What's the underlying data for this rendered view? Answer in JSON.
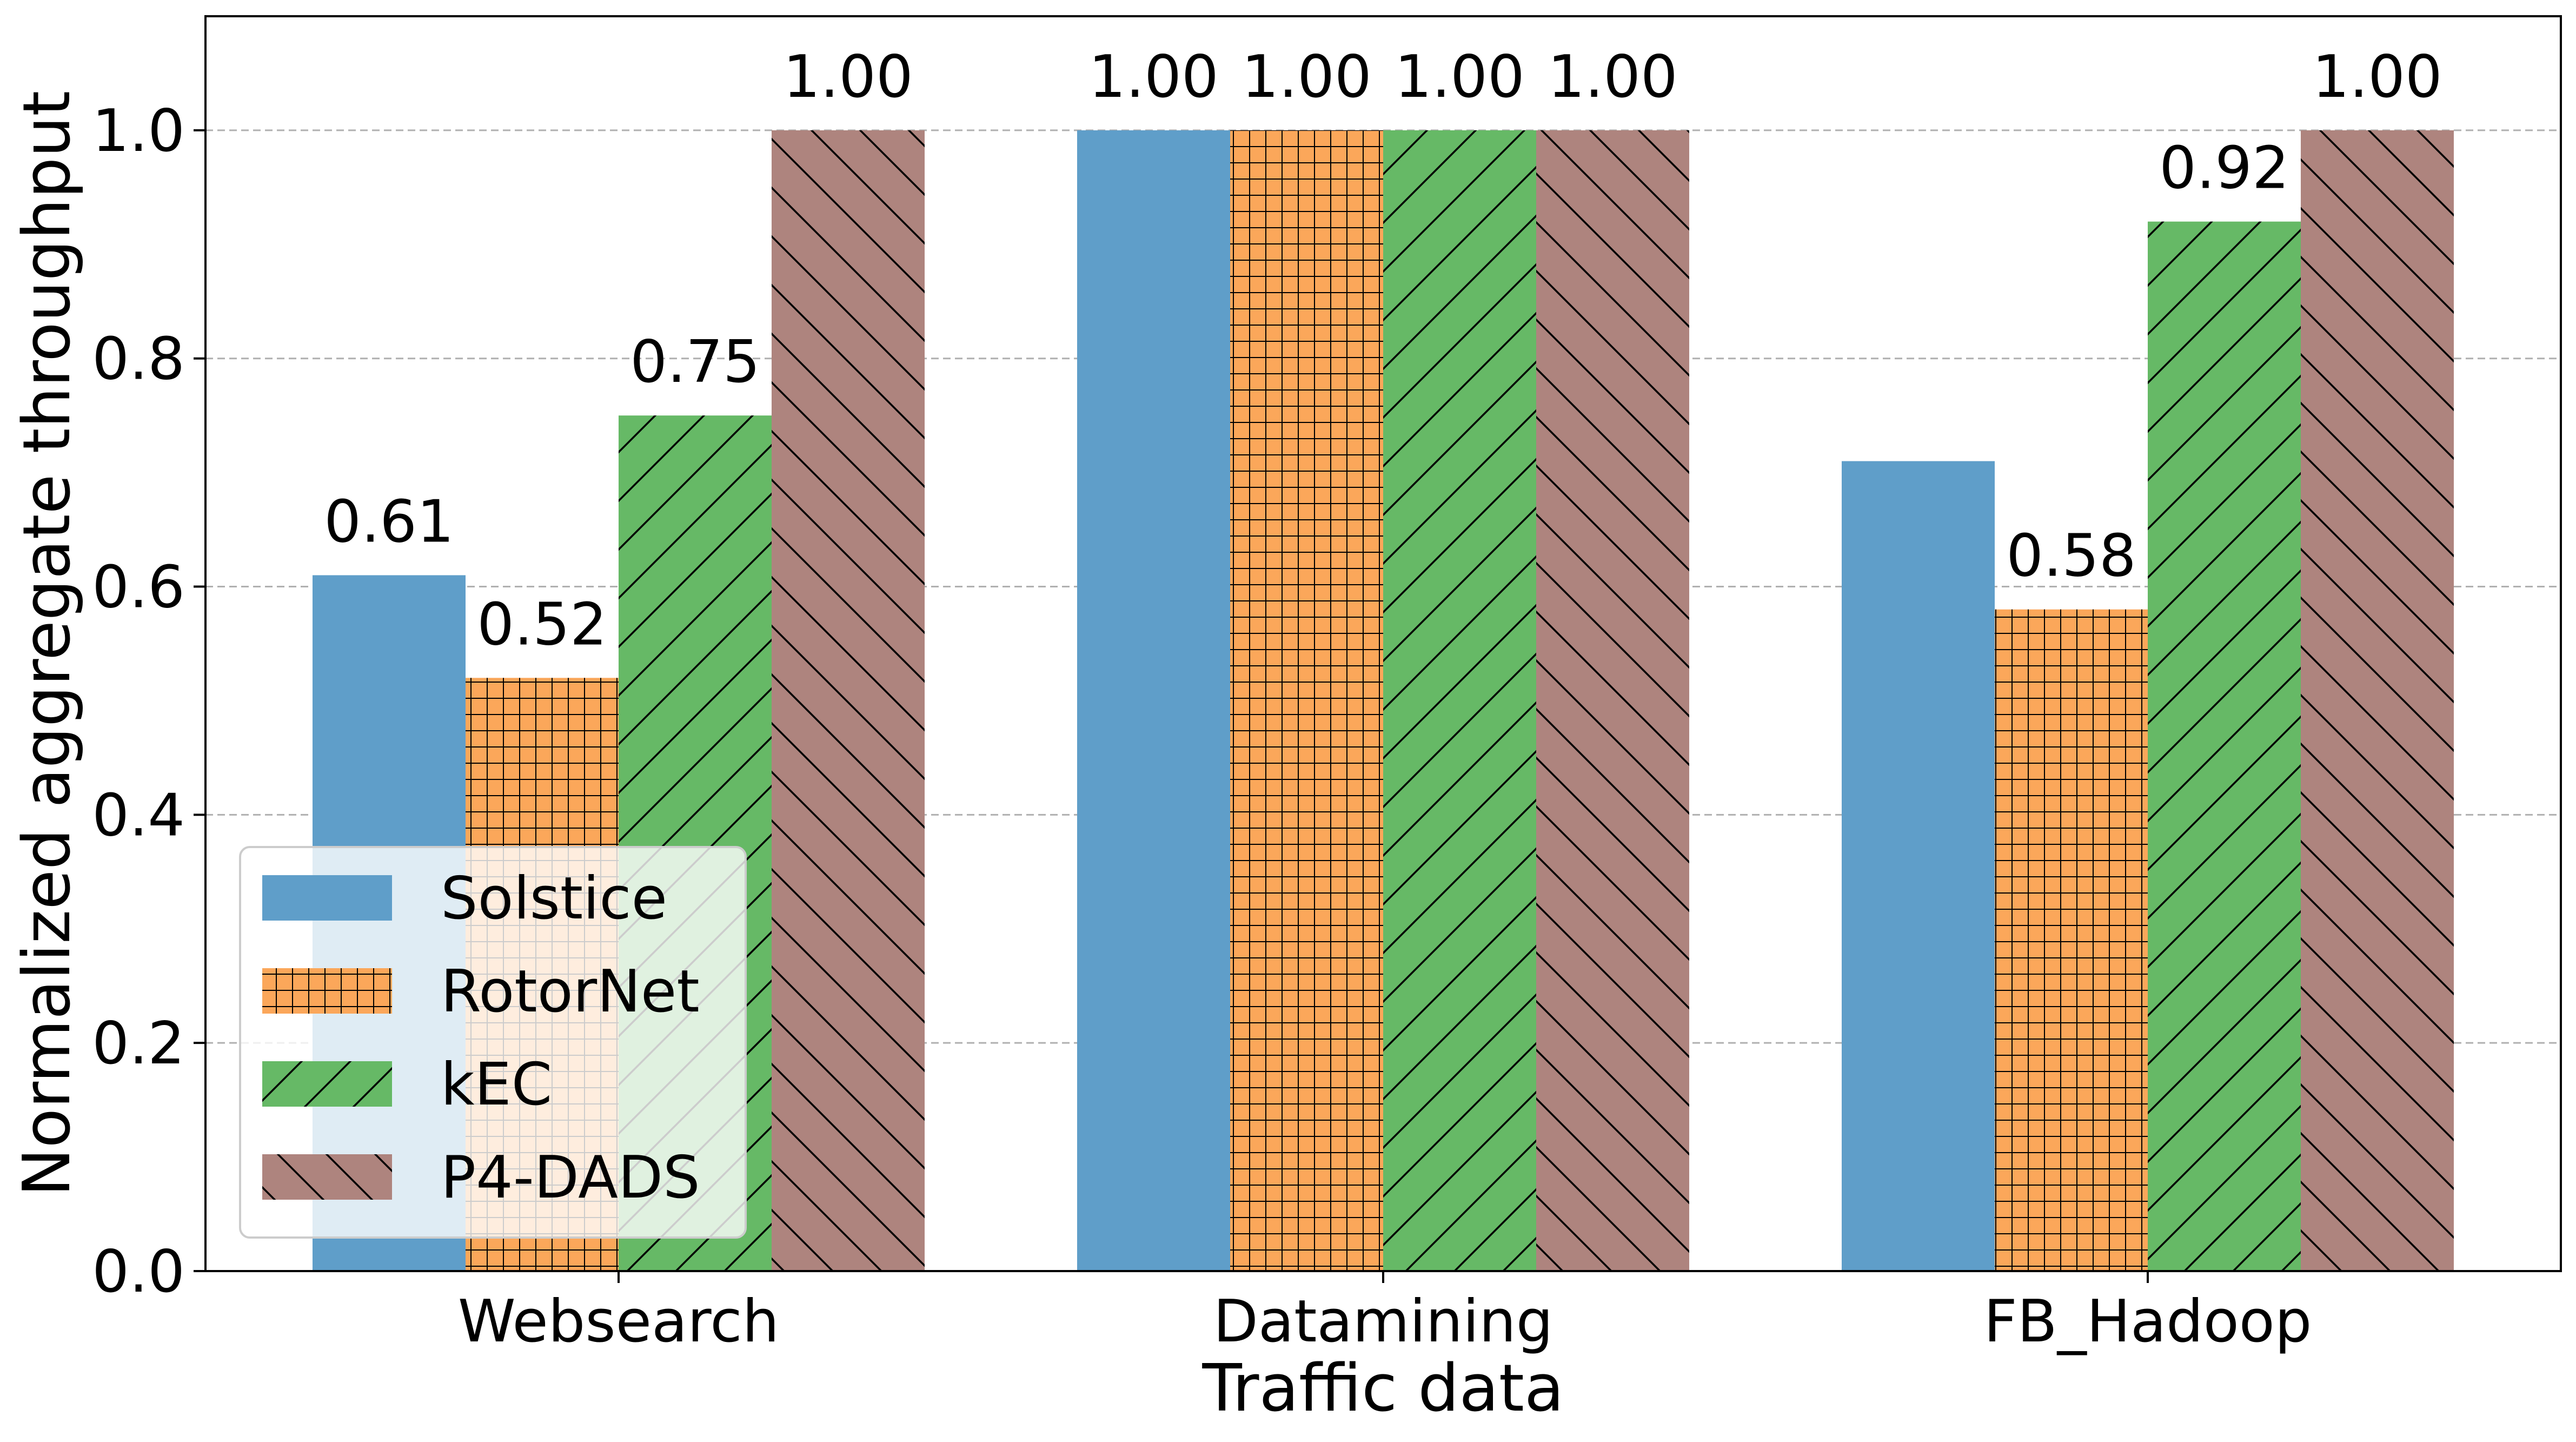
{
  "chart_data": {
    "type": "bar",
    "categories": [
      "Websearch",
      "Datamining",
      "FB_Hadoop"
    ],
    "series": [
      {
        "name": "Solstice",
        "values": [
          0.61,
          1.0,
          0.71
        ],
        "labels": [
          "0.61",
          "1.00",
          "0.71"
        ],
        "color": "#5f9ec9",
        "hatch": "none"
      },
      {
        "name": "RotorNet",
        "values": [
          0.52,
          1.0,
          0.58
        ],
        "labels": [
          "0.52",
          "1.00",
          "0.58"
        ],
        "color": "#fba75a",
        "hatch": "grid"
      },
      {
        "name": "kEC",
        "values": [
          0.75,
          1.0,
          0.92
        ],
        "labels": [
          "0.75",
          "1.00",
          "0.92"
        ],
        "color": "#66b966",
        "hatch": "forward-diagonal"
      },
      {
        "name": "P4-DADS",
        "values": [
          1.0,
          1.0,
          1.0
        ],
        "labels": [
          "1.00",
          "1.00",
          "1.00"
        ],
        "color": "#ae847e",
        "hatch": "back-diagonal"
      }
    ],
    "visible_labels": [
      [
        true,
        true,
        false
      ],
      [
        true,
        true,
        true
      ],
      [
        true,
        true,
        true
      ],
      [
        true,
        true,
        true
      ]
    ],
    "xlabel": "Traffic data",
    "ylabel": "Normalized aggregate throughput",
    "ylim": [
      0,
      1.1
    ],
    "yticks": [
      "0.0",
      "0.2",
      "0.4",
      "0.6",
      "0.8",
      "1.0"
    ],
    "grid": "y, dashed",
    "legend_position": "lower-left"
  }
}
